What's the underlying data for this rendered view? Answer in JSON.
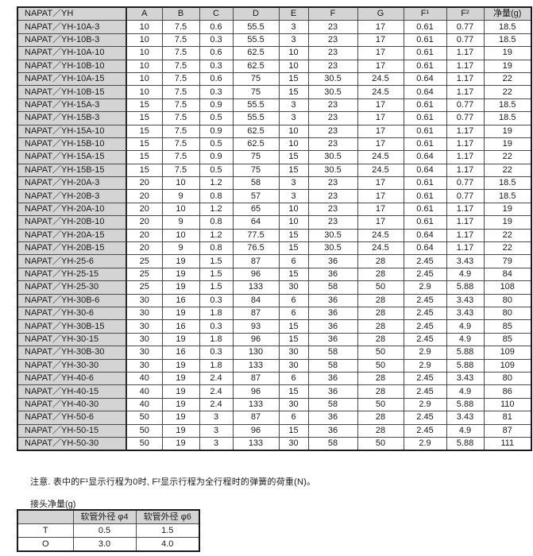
{
  "main_table": {
    "columns": [
      "NAPAT／YH",
      "A",
      "B",
      "C",
      "D",
      "E",
      "F",
      "G",
      "F¹",
      "F²",
      "净量(g)"
    ],
    "rows": [
      [
        "NAPAT／YH-10A-3",
        "10",
        "7.5",
        "0.6",
        "55.5",
        "3",
        "23",
        "17",
        "0.61",
        "0.77",
        "18.5"
      ],
      [
        "NAPAT／YH-10B-3",
        "10",
        "7.5",
        "0.3",
        "55.5",
        "3",
        "23",
        "17",
        "0.61",
        "0.77",
        "18.5"
      ],
      [
        "NAPAT／YH-10A-10",
        "10",
        "7.5",
        "0.6",
        "62.5",
        "10",
        "23",
        "17",
        "0.61",
        "1.17",
        "19"
      ],
      [
        "NAPAT／YH-10B-10",
        "10",
        "7.5",
        "0.3",
        "62.5",
        "10",
        "23",
        "17",
        "0.61",
        "1.17",
        "19"
      ],
      [
        "NAPAT／YH-10A-15",
        "10",
        "7.5",
        "0.6",
        "75",
        "15",
        "30.5",
        "24.5",
        "0.64",
        "1.17",
        "22"
      ],
      [
        "NAPAT／YH-10B-15",
        "10",
        "7.5",
        "0.3",
        "75",
        "15",
        "30.5",
        "24.5",
        "0.64",
        "1.17",
        "22"
      ],
      [
        "NAPAT／YH-15A-3",
        "15",
        "7.5",
        "0.9",
        "55.5",
        "3",
        "23",
        "17",
        "0.61",
        "0.77",
        "18.5"
      ],
      [
        "NAPAT／YH-15B-3",
        "15",
        "7.5",
        "0.5",
        "55.5",
        "3",
        "23",
        "17",
        "0.61",
        "0.77",
        "18.5"
      ],
      [
        "NAPAT／YH-15A-10",
        "15",
        "7.5",
        "0.9",
        "62.5",
        "10",
        "23",
        "17",
        "0.61",
        "1.17",
        "19"
      ],
      [
        "NAPAT／YH-15B-10",
        "15",
        "7.5",
        "0.5",
        "62.5",
        "10",
        "23",
        "17",
        "0.61",
        "1.17",
        "19"
      ],
      [
        "NAPAT／YH-15A-15",
        "15",
        "7.5",
        "0.9",
        "75",
        "15",
        "30.5",
        "24.5",
        "0.64",
        "1.17",
        "22"
      ],
      [
        "NAPAT／YH-15B-15",
        "15",
        "7.5",
        "0.5",
        "75",
        "15",
        "30.5",
        "24.5",
        "0.64",
        "1.17",
        "22"
      ],
      [
        "NAPAT／YH-20A-3",
        "20",
        "10",
        "1.2",
        "58",
        "3",
        "23",
        "17",
        "0.61",
        "0.77",
        "18.5"
      ],
      [
        "NAPAT／YH-20B-3",
        "20",
        "9",
        "0.8",
        "57",
        "3",
        "23",
        "17",
        "0.61",
        "0.77",
        "18.5"
      ],
      [
        "NAPAT／YH-20A-10",
        "20",
        "10",
        "1.2",
        "65",
        "10",
        "23",
        "17",
        "0.61",
        "1.17",
        "19"
      ],
      [
        "NAPAT／YH-20B-10",
        "20",
        "9",
        "0.8",
        "64",
        "10",
        "23",
        "17",
        "0.61",
        "1.17",
        "19"
      ],
      [
        "NAPAT／YH-20A-15",
        "20",
        "10",
        "1.2",
        "77.5",
        "15",
        "30.5",
        "24.5",
        "0.64",
        "1.17",
        "22"
      ],
      [
        "NAPAT／YH-20B-15",
        "20",
        "9",
        "0.8",
        "76.5",
        "15",
        "30.5",
        "24.5",
        "0.64",
        "1.17",
        "22"
      ],
      [
        "NAPAT／YH-25-6",
        "25",
        "19",
        "1.5",
        "87",
        "6",
        "36",
        "28",
        "2.45",
        "3.43",
        "79"
      ],
      [
        "NAPAT／YH-25-15",
        "25",
        "19",
        "1.5",
        "96",
        "15",
        "36",
        "28",
        "2.45",
        "4.9",
        "84"
      ],
      [
        "NAPAT／YH-25-30",
        "25",
        "19",
        "1.5",
        "133",
        "30",
        "58",
        "50",
        "2.9",
        "5.88",
        "108"
      ],
      [
        "NAPAT／YH-30B-6",
        "30",
        "16",
        "0.3",
        "84",
        "6",
        "36",
        "28",
        "2.45",
        "3.43",
        "80"
      ],
      [
        "NAPAT／YH-30-6",
        "30",
        "19",
        "1.8",
        "87",
        "6",
        "36",
        "28",
        "2.45",
        "3.43",
        "80"
      ],
      [
        "NAPAT／YH-30B-15",
        "30",
        "16",
        "0.3",
        "93",
        "15",
        "36",
        "28",
        "2.45",
        "4.9",
        "85"
      ],
      [
        "NAPAT／YH-30-15",
        "30",
        "19",
        "1.8",
        "96",
        "15",
        "36",
        "28",
        "2.45",
        "4.9",
        "85"
      ],
      [
        "NAPAT／YH-30B-30",
        "30",
        "16",
        "0.3",
        "130",
        "30",
        "58",
        "50",
        "2.9",
        "5.88",
        "109"
      ],
      [
        "NAPAT／YH-30-30",
        "30",
        "19",
        "1.8",
        "133",
        "30",
        "58",
        "50",
        "2.9",
        "5.88",
        "109"
      ],
      [
        "NAPAT／YH-40-6",
        "40",
        "19",
        "2.4",
        "87",
        "6",
        "36",
        "28",
        "2.45",
        "3.43",
        "80"
      ],
      [
        "NAPAT／YH-40-15",
        "40",
        "19",
        "2.4",
        "96",
        "15",
        "36",
        "28",
        "2.45",
        "4.9",
        "86"
      ],
      [
        "NAPAT／YH-40-30",
        "40",
        "19",
        "2.4",
        "133",
        "30",
        "58",
        "50",
        "2.9",
        "5.88",
        "110"
      ],
      [
        "NAPAT／YH-50-6",
        "50",
        "19",
        "3",
        "87",
        "6",
        "36",
        "28",
        "2.45",
        "3.43",
        "81"
      ],
      [
        "NAPAT／YH-50-15",
        "50",
        "19",
        "3",
        "96",
        "15",
        "36",
        "28",
        "2.45",
        "4.9",
        "87"
      ],
      [
        "NAPAT／YH-50-30",
        "50",
        "19",
        "3",
        "133",
        "30",
        "58",
        "50",
        "2.9",
        "5.88",
        "111"
      ]
    ]
  },
  "note": "注意. 表中的F¹显示行程为0时, F²显示行程为全行程时的弹簧的荷重(N)。",
  "joint_table": {
    "title": "接头净量(g)",
    "columns": [
      "",
      "软管外径 φ4",
      "软管外径 φ6"
    ],
    "rows": [
      [
        "T",
        "0.5",
        "1.5"
      ],
      [
        "O",
        "3.0",
        "4.0"
      ]
    ]
  }
}
